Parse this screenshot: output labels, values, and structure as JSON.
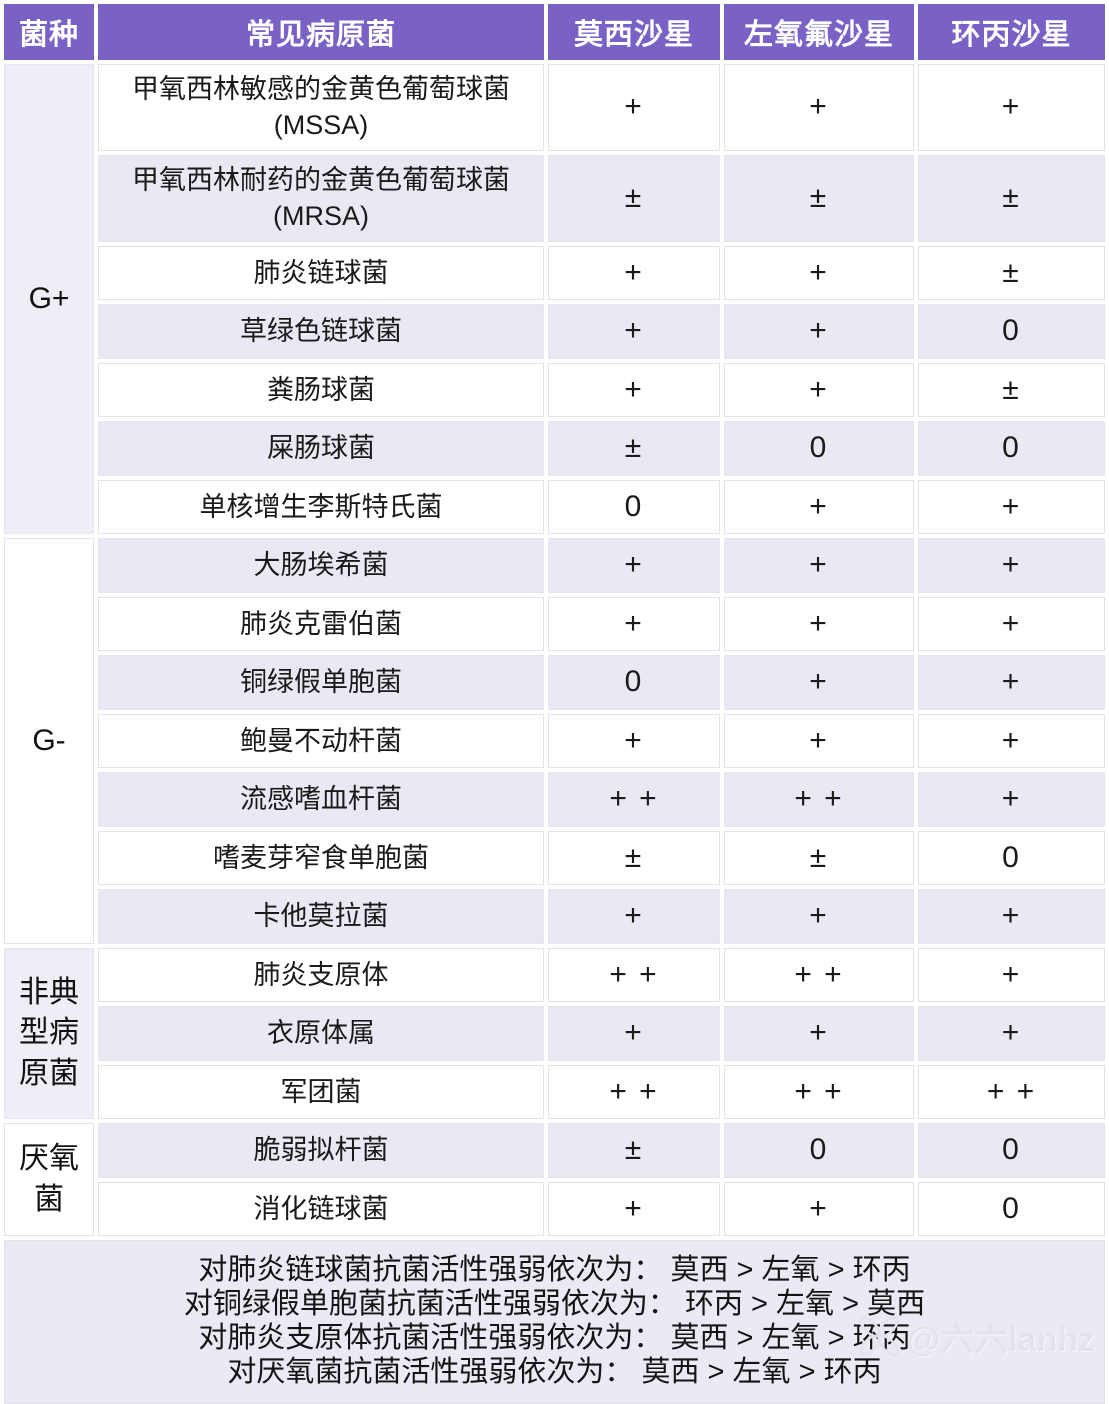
{
  "colors": {
    "header_bg": "#7A61C6",
    "header_text": "#FFFFFF",
    "row_alt_bg": "#EAE9F3",
    "row_bg": "#FFFFFF",
    "group_alt_bg": "#EFEEF6",
    "footer_bg": "#EBEAF4",
    "text": "#1A1A1A",
    "watermark": "#E3E3EC"
  },
  "header": {
    "columns": [
      "菌种",
      "常见病原菌",
      "莫西沙星",
      "左氧氟沙星",
      "环丙沙星"
    ]
  },
  "groups": [
    {
      "label": "G+",
      "rows": [
        {
          "pathogen": "甲氧西林敏感的金黄色葡萄球菌 (MSSA)",
          "moxi": "+",
          "levo": "+",
          "cipro": "+"
        },
        {
          "pathogen": "甲氧西林耐药的金黄色葡萄球菌 (MRSA)",
          "moxi": "±",
          "levo": "±",
          "cipro": "±"
        },
        {
          "pathogen": "肺炎链球菌",
          "moxi": "+",
          "levo": "+",
          "cipro": "±"
        },
        {
          "pathogen": "草绿色链球菌",
          "moxi": "+",
          "levo": "+",
          "cipro": "0"
        },
        {
          "pathogen": "粪肠球菌",
          "moxi": "+",
          "levo": "+",
          "cipro": "±"
        },
        {
          "pathogen": "屎肠球菌",
          "moxi": "±",
          "levo": "0",
          "cipro": "0"
        },
        {
          "pathogen": "单核增生李斯特氏菌",
          "moxi": "0",
          "levo": "+",
          "cipro": "+"
        }
      ]
    },
    {
      "label": "G-",
      "rows": [
        {
          "pathogen": "大肠埃希菌",
          "moxi": "+",
          "levo": "+",
          "cipro": "+"
        },
        {
          "pathogen": "肺炎克雷伯菌",
          "moxi": "+",
          "levo": "+",
          "cipro": "+"
        },
        {
          "pathogen": "铜绿假单胞菌",
          "moxi": "0",
          "levo": "+",
          "cipro": "+"
        },
        {
          "pathogen": "鲍曼不动杆菌",
          "moxi": "+",
          "levo": "+",
          "cipro": "+"
        },
        {
          "pathogen": "流感嗜血杆菌",
          "moxi": "+ +",
          "levo": "+ +",
          "cipro": "+"
        },
        {
          "pathogen": "嗜麦芽窄食单胞菌",
          "moxi": "±",
          "levo": "±",
          "cipro": "0"
        },
        {
          "pathogen": "卡他莫拉菌",
          "moxi": "+",
          "levo": "+",
          "cipro": "+"
        }
      ]
    },
    {
      "label": "非典型病原菌",
      "rows": [
        {
          "pathogen": "肺炎支原体",
          "moxi": "+ +",
          "levo": "+ +",
          "cipro": "+"
        },
        {
          "pathogen": "衣原体属",
          "moxi": "+",
          "levo": "+",
          "cipro": "+"
        },
        {
          "pathogen": "军团菌",
          "moxi": "+ +",
          "levo": "+ +",
          "cipro": "+ +"
        }
      ]
    },
    {
      "label": "厌氧菌",
      "rows": [
        {
          "pathogen": "脆弱拟杆菌",
          "moxi": "±",
          "levo": "0",
          "cipro": "0"
        },
        {
          "pathogen": "消化链球菌",
          "moxi": "+",
          "levo": "+",
          "cipro": "0"
        }
      ]
    }
  ],
  "footer": {
    "notes": [
      "对肺炎链球菌抗菌活性强弱依次为： 莫西 > 左氧 > 环丙",
      "对铜绿假单胞菌抗菌活性强弱依次为： 环丙 > 左氧 > 莫西",
      "对肺炎支原体抗菌活性强弱依次为： 莫西 > 左氧 > 环丙",
      "对厌氧菌抗菌活性强弱依次为： 莫西 > 左氧 > 环丙"
    ]
  },
  "watermark": {
    "icon": "flower-icon",
    "text": "@六六lanhz"
  }
}
